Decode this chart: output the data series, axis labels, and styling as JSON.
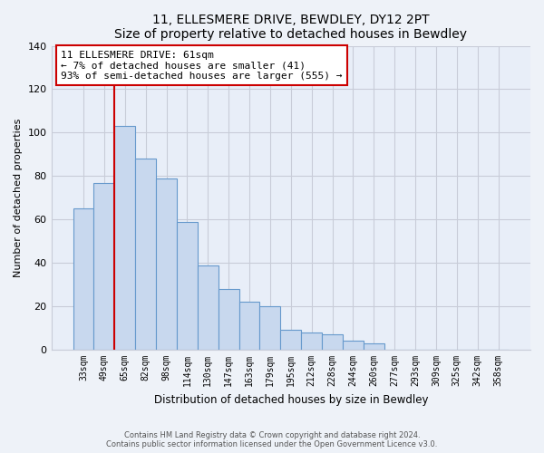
{
  "title": "11, ELLESMERE DRIVE, BEWDLEY, DY12 2PT",
  "subtitle": "Size of property relative to detached houses in Bewdley",
  "xlabel": "Distribution of detached houses by size in Bewdley",
  "ylabel": "Number of detached properties",
  "bar_labels": [
    "33sqm",
    "49sqm",
    "65sqm",
    "82sqm",
    "98sqm",
    "114sqm",
    "130sqm",
    "147sqm",
    "163sqm",
    "179sqm",
    "195sqm",
    "212sqm",
    "228sqm",
    "244sqm",
    "260sqm",
    "277sqm",
    "293sqm",
    "309sqm",
    "325sqm",
    "342sqm",
    "358sqm"
  ],
  "bar_values": [
    65,
    77,
    103,
    88,
    79,
    59,
    39,
    28,
    22,
    20,
    9,
    8,
    7,
    4,
    3,
    0,
    0,
    0,
    0,
    0,
    0
  ],
  "bar_color": "#c8d8ee",
  "bar_edge_color": "#6699cc",
  "ylim": [
    0,
    140
  ],
  "yticks": [
    0,
    20,
    40,
    60,
    80,
    100,
    120,
    140
  ],
  "property_line_color": "#cc0000",
  "annotation_title": "11 ELLESMERE DRIVE: 61sqm",
  "annotation_line1": "← 7% of detached houses are smaller (41)",
  "annotation_line2": "93% of semi-detached houses are larger (555) →",
  "annotation_box_color": "#ffffff",
  "annotation_box_edge": "#cc0000",
  "footer_line1": "Contains HM Land Registry data © Crown copyright and database right 2024.",
  "footer_line2": "Contains public sector information licensed under the Open Government Licence v3.0.",
  "background_color": "#eef2f8",
  "plot_bg_color": "#e8eef8",
  "grid_color": "#c8ccd8"
}
